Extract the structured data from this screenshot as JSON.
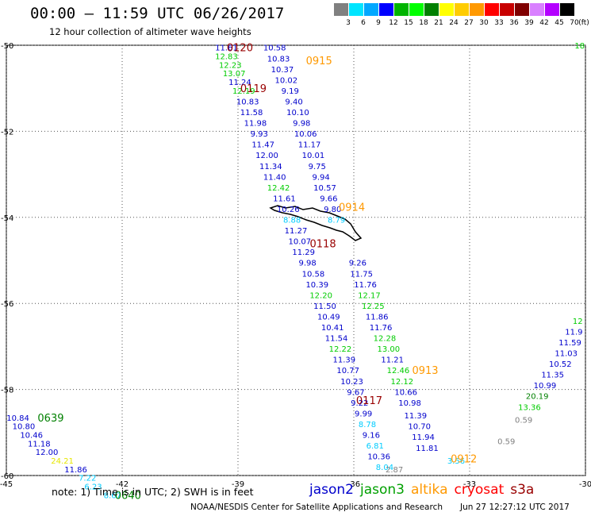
{
  "header": {
    "title": "00:00 – 11:59 UTC 06/26/2017",
    "subtitle": "12 hour collection of altimeter wave heights"
  },
  "scale": {
    "unit": "(ft)",
    "colors": [
      "#808080",
      "#00e5ff",
      "#00a8ff",
      "#0000ff",
      "#00b400",
      "#00ff00",
      "#008000",
      "#ffff00",
      "#ffcc00",
      "#ff9900",
      "#ff0000",
      "#c80000",
      "#800000",
      "#d980ff",
      "#b400ff",
      "#000000"
    ],
    "labels": [
      "3",
      "6",
      "9",
      "12",
      "15",
      "18",
      "21",
      "24",
      "27",
      "30",
      "33",
      "36",
      "39",
      "42",
      "45",
      "70"
    ]
  },
  "chart_data": {
    "type": "scatter",
    "x_axis": {
      "range": [
        -45,
        -30
      ],
      "ticks": [
        "-45",
        "-42",
        "-39",
        "-36",
        "-33",
        "-30"
      ]
    },
    "y_axis": {
      "range": [
        -60,
        -50
      ],
      "ticks": [
        "-50",
        "-52",
        "-54",
        "-56",
        "-58",
        "-60"
      ]
    },
    "grid": true,
    "series_colors": {
      "jason2": "#0000cc",
      "jason3": "#00a000",
      "altika": "#ff9900",
      "cryosat": "#ff0000",
      "s3a": "#990000"
    },
    "points": [
      {
        "lon": -39.3,
        "lat": -50.05,
        "v": "11.61",
        "c": "#0000cc"
      },
      {
        "lon": -39.3,
        "lat": -50.25,
        "v": "12.83",
        "c": "#00cc00"
      },
      {
        "lon": -39.2,
        "lat": -50.45,
        "v": "12.23",
        "c": "#00cc00"
      },
      {
        "lon": -39.1,
        "lat": -50.65,
        "v": "13.07",
        "c": "#00cc00"
      },
      {
        "lon": -38.95,
        "lat": -50.85,
        "v": "11.24",
        "c": "#0000cc"
      },
      {
        "lon": -38.85,
        "lat": -51.05,
        "v": "12.19",
        "c": "#00cc00"
      },
      {
        "lon": -38.75,
        "lat": -51.3,
        "v": "10.83",
        "c": "#0000cc"
      },
      {
        "lon": -38.65,
        "lat": -51.55,
        "v": "11.58",
        "c": "#0000cc"
      },
      {
        "lon": -38.55,
        "lat": -51.8,
        "v": "11.98",
        "c": "#0000cc"
      },
      {
        "lon": -38.45,
        "lat": -52.05,
        "v": "9.93",
        "c": "#0000cc"
      },
      {
        "lon": -38.35,
        "lat": -52.3,
        "v": "11.47",
        "c": "#0000cc"
      },
      {
        "lon": -38.25,
        "lat": -52.55,
        "v": "12.00",
        "c": "#0000cc"
      },
      {
        "lon": -38.15,
        "lat": -52.8,
        "v": "11.34",
        "c": "#0000cc"
      },
      {
        "lon": -38.05,
        "lat": -53.05,
        "v": "11.40",
        "c": "#0000cc"
      },
      {
        "lon": -37.95,
        "lat": -53.3,
        "v": "12.42",
        "c": "#00cc00"
      },
      {
        "lon": -37.8,
        "lat": -53.55,
        "v": "11.61",
        "c": "#0000cc"
      },
      {
        "lon": -37.7,
        "lat": -53.8,
        "v": "10.26",
        "c": "#0000cc"
      },
      {
        "lon": -37.6,
        "lat": -54.05,
        "v": "8.88",
        "c": "#00ccff"
      },
      {
        "lon": -37.5,
        "lat": -54.3,
        "v": "11.27",
        "c": "#0000cc"
      },
      {
        "lon": -37.4,
        "lat": -54.55,
        "v": "10.07",
        "c": "#0000cc"
      },
      {
        "lon": -37.3,
        "lat": -54.8,
        "v": "11.29",
        "c": "#0000cc"
      },
      {
        "lon": -37.2,
        "lat": -55.05,
        "v": "9.98",
        "c": "#0000cc"
      },
      {
        "lon": -37.05,
        "lat": -55.3,
        "v": "10.58",
        "c": "#0000cc"
      },
      {
        "lon": -36.95,
        "lat": -55.55,
        "v": "10.39",
        "c": "#0000cc"
      },
      {
        "lon": -36.85,
        "lat": -55.8,
        "v": "12.20",
        "c": "#00cc00"
      },
      {
        "lon": -36.75,
        "lat": -56.05,
        "v": "11.50",
        "c": "#0000cc"
      },
      {
        "lon": -36.65,
        "lat": -56.3,
        "v": "10.49",
        "c": "#0000cc"
      },
      {
        "lon": -36.55,
        "lat": -56.55,
        "v": "10.41",
        "c": "#0000cc"
      },
      {
        "lon": -36.45,
        "lat": -56.8,
        "v": "11.54",
        "c": "#0000cc"
      },
      {
        "lon": -36.35,
        "lat": -57.05,
        "v": "12.22",
        "c": "#00cc00"
      },
      {
        "lon": -36.25,
        "lat": -57.3,
        "v": "11.39",
        "c": "#0000cc"
      },
      {
        "lon": -36.15,
        "lat": -57.55,
        "v": "10.77",
        "c": "#0000cc"
      },
      {
        "lon": -36.05,
        "lat": -57.8,
        "v": "10.23",
        "c": "#0000cc"
      },
      {
        "lon": -35.95,
        "lat": -58.05,
        "v": "9.67",
        "c": "#0000cc"
      },
      {
        "lon": -35.85,
        "lat": -58.3,
        "v": "9.22",
        "c": "#0000cc"
      },
      {
        "lon": -35.75,
        "lat": -58.55,
        "v": "9.99",
        "c": "#0000cc"
      },
      {
        "lon": -35.65,
        "lat": -58.8,
        "v": "8.78",
        "c": "#00ccff"
      },
      {
        "lon": -35.55,
        "lat": -59.05,
        "v": "9.16",
        "c": "#0000cc"
      },
      {
        "lon": -35.45,
        "lat": -59.3,
        "v": "6.81",
        "c": "#00ccff"
      },
      {
        "lon": -35.35,
        "lat": -59.55,
        "v": "10.36",
        "c": "#0000cc"
      },
      {
        "lon": -35.2,
        "lat": -59.8,
        "v": "8.04",
        "c": "#00ccff"
      },
      {
        "lon": -38.05,
        "lat": -50.05,
        "v": "10.58",
        "c": "#0000cc"
      },
      {
        "lon": -37.95,
        "lat": -50.3,
        "v": "10.83",
        "c": "#0000cc"
      },
      {
        "lon": -37.85,
        "lat": -50.55,
        "v": "10.37",
        "c": "#0000cc"
      },
      {
        "lon": -37.75,
        "lat": -50.8,
        "v": "10.02",
        "c": "#0000cc"
      },
      {
        "lon": -37.65,
        "lat": -51.05,
        "v": "9.19",
        "c": "#0000cc"
      },
      {
        "lon": -37.55,
        "lat": -51.3,
        "v": "9.40",
        "c": "#0000cc"
      },
      {
        "lon": -37.45,
        "lat": -51.55,
        "v": "10.10",
        "c": "#0000cc"
      },
      {
        "lon": -37.35,
        "lat": -51.8,
        "v": "9.98",
        "c": "#0000cc"
      },
      {
        "lon": -37.25,
        "lat": -52.05,
        "v": "10.06",
        "c": "#0000cc"
      },
      {
        "lon": -37.15,
        "lat": -52.3,
        "v": "11.17",
        "c": "#0000cc"
      },
      {
        "lon": -37.05,
        "lat": -52.55,
        "v": "10.01",
        "c": "#0000cc"
      },
      {
        "lon": -36.95,
        "lat": -52.8,
        "v": "9.75",
        "c": "#0000cc"
      },
      {
        "lon": -36.85,
        "lat": -53.05,
        "v": "9.94",
        "c": "#0000cc"
      },
      {
        "lon": -36.75,
        "lat": -53.3,
        "v": "10.57",
        "c": "#0000cc"
      },
      {
        "lon": -36.65,
        "lat": -53.55,
        "v": "9.66",
        "c": "#0000cc"
      },
      {
        "lon": -36.55,
        "lat": -53.8,
        "v": "9.80",
        "c": "#0000cc"
      },
      {
        "lon": -36.45,
        "lat": -54.05,
        "v": "8.79",
        "c": "#00ccff"
      },
      {
        "lon": -35.9,
        "lat": -55.05,
        "v": "9.26",
        "c": "#0000cc"
      },
      {
        "lon": -35.8,
        "lat": -55.3,
        "v": "11.75",
        "c": "#0000cc"
      },
      {
        "lon": -35.7,
        "lat": -55.55,
        "v": "11.76",
        "c": "#0000cc"
      },
      {
        "lon": -35.6,
        "lat": -55.8,
        "v": "12.17",
        "c": "#00cc00"
      },
      {
        "lon": -35.5,
        "lat": -56.05,
        "v": "12.25",
        "c": "#00cc00"
      },
      {
        "lon": -35.4,
        "lat": -56.3,
        "v": "11.86",
        "c": "#0000cc"
      },
      {
        "lon": -35.3,
        "lat": -56.55,
        "v": "11.76",
        "c": "#0000cc"
      },
      {
        "lon": -35.2,
        "lat": -56.8,
        "v": "12.28",
        "c": "#00cc00"
      },
      {
        "lon": -35.1,
        "lat": -57.05,
        "v": "13.00",
        "c": "#00cc00"
      },
      {
        "lon": -35.0,
        "lat": -57.3,
        "v": "11.21",
        "c": "#0000cc"
      },
      {
        "lon": -34.85,
        "lat": -57.55,
        "v": "12.46",
        "c": "#00cc00"
      },
      {
        "lon": -34.75,
        "lat": -57.8,
        "v": "12.12",
        "c": "#00cc00"
      },
      {
        "lon": -34.65,
        "lat": -58.05,
        "v": "10.66",
        "c": "#0000cc"
      },
      {
        "lon": -34.55,
        "lat": -58.3,
        "v": "10.98",
        "c": "#0000cc"
      },
      {
        "lon": -34.4,
        "lat": -58.6,
        "v": "11.39",
        "c": "#0000cc"
      },
      {
        "lon": -34.3,
        "lat": -58.85,
        "v": "10.70",
        "c": "#0000cc"
      },
      {
        "lon": -34.2,
        "lat": -59.1,
        "v": "11.94",
        "c": "#0000cc"
      },
      {
        "lon": -34.1,
        "lat": -59.35,
        "v": "11.81",
        "c": "#0000cc"
      },
      {
        "lon": -33.35,
        "lat": -59.65,
        "v": "3.56",
        "c": "#00ccff"
      },
      {
        "lon": -34.95,
        "lat": -59.85,
        "v": "2.87",
        "c": "#808080"
      },
      {
        "lon": -44.7,
        "lat": -58.65,
        "v": "10.84",
        "c": "#0000cc"
      },
      {
        "lon": -44.55,
        "lat": -58.85,
        "v": "10.80",
        "c": "#0000cc"
      },
      {
        "lon": -44.35,
        "lat": -59.05,
        "v": "10.46",
        "c": "#0000cc"
      },
      {
        "lon": -44.15,
        "lat": -59.25,
        "v": "11.18",
        "c": "#0000cc"
      },
      {
        "lon": -43.95,
        "lat": -59.45,
        "v": "12.00",
        "c": "#0000cc"
      },
      {
        "lon": -43.55,
        "lat": -59.65,
        "v": "24.21",
        "c": "#e6e600"
      },
      {
        "lon": -43.2,
        "lat": -59.85,
        "v": "11.86",
        "c": "#0000cc"
      },
      {
        "lon": -42.9,
        "lat": -60.05,
        "v": "7.22",
        "c": "#00ccff"
      },
      {
        "lon": -42.75,
        "lat": -60.25,
        "v": "6.23",
        "c": "#00ccff"
      },
      {
        "lon": -42.25,
        "lat": -60.45,
        "v": "8.67",
        "c": "#00ccff"
      },
      {
        "lon": -30.2,
        "lat": -56.4,
        "v": "12",
        "c": "#00cc00"
      },
      {
        "lon": -30.3,
        "lat": -56.65,
        "v": "11.9",
        "c": "#0000cc"
      },
      {
        "lon": -30.4,
        "lat": -56.9,
        "v": "11.59",
        "c": "#0000cc"
      },
      {
        "lon": -30.5,
        "lat": -57.15,
        "v": "11.03",
        "c": "#0000cc"
      },
      {
        "lon": -30.65,
        "lat": -57.4,
        "v": "10.52",
        "c": "#0000cc"
      },
      {
        "lon": -30.85,
        "lat": -57.65,
        "v": "11.35",
        "c": "#0000cc"
      },
      {
        "lon": -31.05,
        "lat": -57.9,
        "v": "10.99",
        "c": "#0000cc"
      },
      {
        "lon": -31.25,
        "lat": -58.15,
        "v": "20.19",
        "c": "#008000"
      },
      {
        "lon": -31.45,
        "lat": -58.4,
        "v": "13.36",
        "c": "#00cc00"
      },
      {
        "lon": -31.6,
        "lat": -58.7,
        "v": "0.59",
        "c": "#808080"
      },
      {
        "lon": -32.05,
        "lat": -59.2,
        "v": "0.59",
        "c": "#808080"
      },
      {
        "lon": -30.15,
        "lat": -50.0,
        "v": "18",
        "c": "#00cc00"
      }
    ],
    "times": [
      {
        "lon": -38.95,
        "lat": -50.05,
        "t": "0120",
        "c": "#990000"
      },
      {
        "lon": -38.6,
        "lat": -51.0,
        "t": "0119",
        "c": "#990000"
      },
      {
        "lon": -36.9,
        "lat": -50.35,
        "t": "0915",
        "c": "#ff9900"
      },
      {
        "lon": -36.05,
        "lat": -53.75,
        "t": "0914",
        "c": "#ff9900"
      },
      {
        "lon": -36.8,
        "lat": -54.6,
        "t": "0118",
        "c": "#990000"
      },
      {
        "lon": -34.15,
        "lat": -57.55,
        "t": "0913",
        "c": "#ff9900"
      },
      {
        "lon": -35.6,
        "lat": -58.25,
        "t": "0117",
        "c": "#990000"
      },
      {
        "lon": -33.15,
        "lat": -59.6,
        "t": "0912",
        "c": "#ff9900"
      },
      {
        "lon": -43.85,
        "lat": -58.65,
        "t": "0639",
        "c": "#008000"
      },
      {
        "lon": -41.85,
        "lat": -60.45,
        "t": "0640",
        "c": "#008000"
      }
    ]
  },
  "footer": {
    "note": "note: 1) Time is in UTC; 2) SWH is in feet",
    "missions": [
      {
        "name": "jason2",
        "color": "#0000cc"
      },
      {
        "name": "jason3",
        "color": "#00a000"
      },
      {
        "name": "altika",
        "color": "#ff9900"
      },
      {
        "name": "cryosat",
        "color": "#ff0000"
      },
      {
        "name": "s3a",
        "color": "#990000"
      }
    ],
    "credit": "NOAA/NESDIS Center for Satellite Applications and Research",
    "stamp": "Jun 27 12:27:12 UTC 2017"
  }
}
